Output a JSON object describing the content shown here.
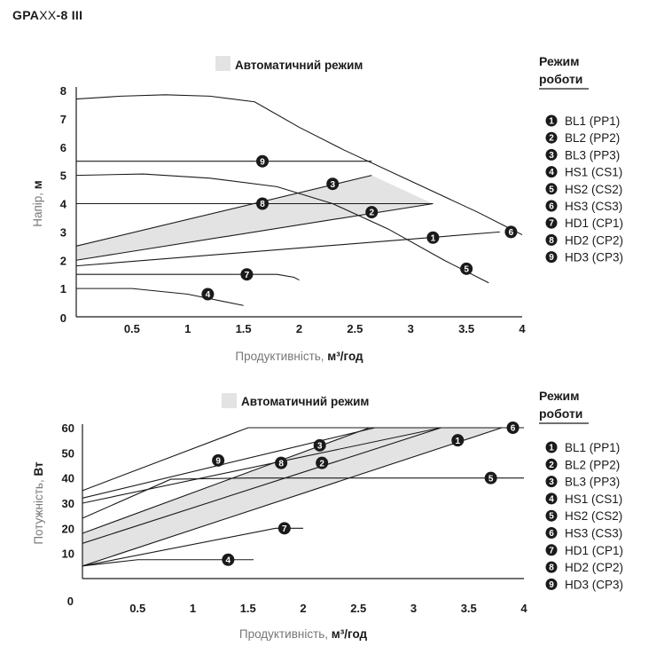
{
  "title": {
    "bold": "GPA",
    "light": "XX",
    "rest": "-8 III"
  },
  "legend": {
    "header_line1": "Режим",
    "header_line2": "роботи",
    "items": [
      {
        "num": "1",
        "label": "BL1 (PP1)"
      },
      {
        "num": "2",
        "label": "BL2 (PP2)"
      },
      {
        "num": "3",
        "label": "BL3 (PP3)"
      },
      {
        "num": "4",
        "label": "HS1 (CS1)"
      },
      {
        "num": "5",
        "label": "HS2 (CS2)"
      },
      {
        "num": "6",
        "label": "HS3 (CS3)"
      },
      {
        "num": "7",
        "label": "HD1 (CP1)"
      },
      {
        "num": "8",
        "label": "HD2 (CP2)"
      },
      {
        "num": "9",
        "label": "HD3 (CP3)"
      }
    ]
  },
  "colors": {
    "line": "#1a1a1a",
    "fill": "#e3e3e3",
    "marker": "#1a1a1a"
  },
  "chart_data": [
    {
      "type": "line",
      "auto_label": "Автоматичний режим",
      "xlabel": "Продуктивність, ",
      "xlabel_unit": "м³/год",
      "ylabel": "Напір, ",
      "ylabel_unit": "м",
      "xlim": [
        0,
        4
      ],
      "ylim": [
        0,
        8
      ],
      "xticks": [
        "0.5",
        "1",
        "1.5",
        "2",
        "2.5",
        "3",
        "3.5",
        "4"
      ],
      "yticks": [
        "0",
        "1",
        "2",
        "3",
        "4",
        "5",
        "6",
        "7",
        "8"
      ],
      "auto_region": [
        [
          0,
          2.5
        ],
        [
          2.65,
          5.0
        ],
        [
          3.2,
          4.0
        ],
        [
          0,
          2.0
        ]
      ],
      "series": [
        {
          "marker": "1",
          "points": [
            [
              0,
              1.8
            ],
            [
              3.8,
              3.0
            ]
          ],
          "marker_at": [
            3.2,
            2.8
          ]
        },
        {
          "marker": "2",
          "points": [
            [
              0,
              2.0
            ],
            [
              3.2,
              4.0
            ]
          ],
          "marker_at": [
            2.65,
            3.7
          ]
        },
        {
          "marker": "3",
          "points": [
            [
              0,
              2.5
            ],
            [
              2.65,
              5.0
            ]
          ],
          "marker_at": [
            2.3,
            4.7
          ]
        },
        {
          "marker": "4",
          "points": [
            [
              0,
              1.0
            ],
            [
              0.5,
              1.0
            ],
            [
              1.0,
              0.8
            ],
            [
              1.5,
              0.4
            ]
          ],
          "marker_at": [
            1.18,
            0.8
          ]
        },
        {
          "marker": "5",
          "points": [
            [
              0,
              5.0
            ],
            [
              0.6,
              5.05
            ],
            [
              1.2,
              4.9
            ],
            [
              1.8,
              4.6
            ],
            [
              2.3,
              4.0
            ],
            [
              2.8,
              3.1
            ],
            [
              3.3,
              2.0
            ],
            [
              3.7,
              1.2
            ]
          ],
          "marker_at": [
            3.5,
            1.7
          ]
        },
        {
          "marker": "6",
          "points": [
            [
              0,
              7.7
            ],
            [
              0.4,
              7.8
            ],
            [
              0.8,
              7.85
            ],
            [
              1.2,
              7.8
            ],
            [
              1.6,
              7.6
            ],
            [
              2.0,
              6.7
            ],
            [
              2.4,
              5.9
            ],
            [
              3.0,
              4.8
            ],
            [
              3.6,
              3.7
            ],
            [
              4.0,
              2.9
            ]
          ],
          "marker_at": [
            3.9,
            3.0
          ]
        },
        {
          "marker": "7",
          "points": [
            [
              0,
              1.5
            ],
            [
              1.5,
              1.5
            ],
            [
              1.8,
              1.5
            ],
            [
              1.95,
              1.4
            ],
            [
              2.0,
              1.3
            ]
          ],
          "marker_at": [
            1.53,
            1.5
          ]
        },
        {
          "marker": "8",
          "points": [
            [
              0,
              4.0
            ],
            [
              3.2,
              4.0
            ]
          ],
          "marker_at": [
            1.67,
            4.0
          ]
        },
        {
          "marker": "9",
          "points": [
            [
              0,
              5.5
            ],
            [
              2.65,
              5.5
            ]
          ],
          "marker_at": [
            1.67,
            5.5
          ]
        }
      ]
    },
    {
      "type": "line",
      "auto_label": "Автоматичний режим",
      "xlabel": "Продуктивність, ",
      "xlabel_unit": "м³/год",
      "ylabel": "Потужність, ",
      "ylabel_unit": "Вт",
      "xlim": [
        0,
        4
      ],
      "ylim": [
        0,
        60
      ],
      "xticks": [
        "0.5",
        "1",
        "1.5",
        "2",
        "2.5",
        "3",
        "3.5",
        "4"
      ],
      "yticks": [
        "0",
        "10",
        "20",
        "30",
        "40",
        "50",
        "60"
      ],
      "auto_region": [
        [
          0,
          18
        ],
        [
          2.6,
          60
        ],
        [
          3.8,
          60
        ],
        [
          0,
          5
        ]
      ],
      "series": [
        {
          "marker": "1",
          "points": [
            [
              0,
              5
            ],
            [
              3.8,
              60
            ]
          ],
          "marker_at": [
            3.4,
            55
          ]
        },
        {
          "marker": "2",
          "points": [
            [
              0,
              14
            ],
            [
              3.25,
              60
            ]
          ],
          "marker_at": [
            2.17,
            46
          ]
        },
        {
          "marker": "3",
          "points": [
            [
              0,
              18
            ],
            [
              2.6,
              60
            ]
          ],
          "marker_at": [
            2.15,
            53
          ]
        },
        {
          "marker": "4",
          "points": [
            [
              0,
              5
            ],
            [
              0.5,
              7.5
            ],
            [
              1.0,
              7.5
            ],
            [
              1.55,
              7.5
            ]
          ],
          "marker_at": [
            1.32,
            7.5
          ]
        },
        {
          "marker": "5",
          "points": [
            [
              0,
              24
            ],
            [
              0.8,
              39.5
            ],
            [
              1.5,
              40
            ],
            [
              3.5,
              40
            ],
            [
              4.0,
              40
            ]
          ],
          "marker_at": [
            3.7,
            40
          ]
        },
        {
          "marker": "6",
          "points": [
            [
              0,
              35
            ],
            [
              1.5,
              60
            ],
            [
              4.0,
              60
            ]
          ],
          "marker_at": [
            3.9,
            60
          ]
        },
        {
          "marker": "7",
          "points": [
            [
              0,
              5
            ],
            [
              1.75,
              20
            ],
            [
              2.0,
              20
            ]
          ],
          "marker_at": [
            1.83,
            20
          ]
        },
        {
          "marker": "8",
          "points": [
            [
              0,
              30
            ],
            [
              3.25,
              60
            ]
          ],
          "marker_at": [
            1.8,
            46
          ]
        },
        {
          "marker": "9",
          "points": [
            [
              0,
              32
            ],
            [
              2.65,
              60
            ]
          ],
          "marker_at": [
            1.23,
            47
          ]
        }
      ]
    }
  ]
}
